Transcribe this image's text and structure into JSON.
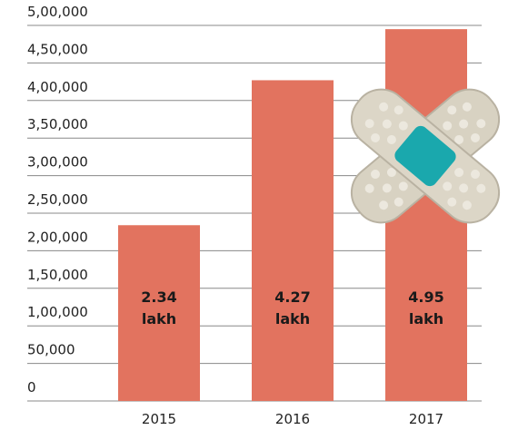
{
  "chart_data": {
    "type": "bar",
    "categories": [
      "2015",
      "2016",
      "2017"
    ],
    "values": [
      234000,
      427000,
      495000
    ],
    "value_labels": [
      "2.34 lakh",
      "4.27 lakh",
      "4.95 lakh"
    ],
    "color": "#e2735f",
    "ylim": [
      0,
      500000
    ],
    "yticks": [
      0,
      {
        "value": 50000,
        "label": "50,000"
      },
      {
        "value": 100000,
        "label": "1,00,000"
      },
      {
        "value": 150000,
        "label": "1,50,000"
      },
      {
        "value": 200000,
        "label": "2,00,000"
      },
      {
        "value": 250000,
        "label": "2,50,000"
      },
      {
        "value": 300000,
        "label": "3,00,000"
      },
      {
        "value": 350000,
        "label": "3,50,000"
      },
      {
        "value": 400000,
        "label": "4,00,000"
      },
      {
        "value": 450000,
        "label": "4,50,000"
      },
      {
        "value": 500000,
        "label": "5,00,000"
      }
    ],
    "grid": true
  }
}
